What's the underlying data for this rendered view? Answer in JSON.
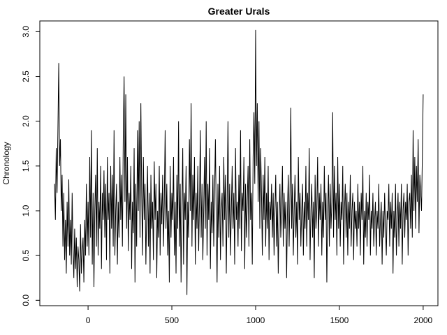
{
  "chart_data": {
    "type": "line",
    "title": "Greater Urals",
    "y_label": "Chronology",
    "x": [
      -200,
      -195,
      -190,
      -185,
      -180,
      -175,
      -170,
      -165,
      -160,
      -155,
      -150,
      -145,
      -140,
      -135,
      -130,
      -125,
      -120,
      -115,
      -110,
      -105,
      -100,
      -95,
      -90,
      -85,
      -80,
      -75,
      -70,
      -65,
      -60,
      -55,
      -50,
      -45,
      -40,
      -35,
      -30,
      -25,
      -20,
      -15,
      -10,
      -5,
      0,
      5,
      10,
      15,
      20,
      25,
      30,
      35,
      40,
      45,
      50,
      55,
      60,
      65,
      70,
      75,
      80,
      85,
      90,
      95,
      100,
      105,
      110,
      115,
      120,
      125,
      130,
      135,
      140,
      145,
      150,
      155,
      160,
      165,
      170,
      175,
      180,
      185,
      190,
      195,
      200,
      205,
      210,
      215,
      220,
      225,
      230,
      235,
      240,
      245,
      250,
      255,
      260,
      265,
      270,
      275,
      280,
      285,
      290,
      295,
      300,
      305,
      310,
      315,
      320,
      325,
      330,
      335,
      340,
      345,
      350,
      355,
      360,
      365,
      370,
      375,
      380,
      385,
      390,
      395,
      400,
      405,
      410,
      415,
      420,
      425,
      430,
      435,
      440,
      445,
      450,
      455,
      460,
      465,
      470,
      475,
      480,
      485,
      490,
      495,
      500,
      505,
      510,
      515,
      520,
      525,
      530,
      535,
      540,
      545,
      550,
      555,
      560,
      565,
      570,
      575,
      580,
      585,
      590,
      595,
      600,
      605,
      610,
      615,
      620,
      625,
      630,
      635,
      640,
      645,
      650,
      655,
      660,
      665,
      670,
      675,
      680,
      685,
      690,
      695,
      700,
      705,
      710,
      715,
      720,
      725,
      730,
      735,
      740,
      745,
      750,
      755,
      760,
      765,
      770,
      775,
      780,
      785,
      790,
      795,
      800,
      805,
      810,
      815,
      820,
      825,
      830,
      835,
      840,
      845,
      850,
      855,
      860,
      865,
      870,
      875,
      880,
      885,
      890,
      895,
      900,
      905,
      910,
      915,
      920,
      925,
      930,
      935,
      940,
      945,
      950,
      955,
      960,
      965,
      970,
      975,
      980,
      985,
      990,
      995,
      1000,
      1005,
      1010,
      1015,
      1020,
      1025,
      1030,
      1035,
      1040,
      1045,
      1050,
      1055,
      1060,
      1065,
      1070,
      1075,
      1080,
      1085,
      1090,
      1095,
      1100,
      1105,
      1110,
      1115,
      1120,
      1125,
      1130,
      1135,
      1140,
      1145,
      1150,
      1155,
      1160,
      1165,
      1170,
      1175,
      1180,
      1185,
      1190,
      1195,
      1200,
      1205,
      1210,
      1215,
      1220,
      1225,
      1230,
      1235,
      1240,
      1245,
      1250,
      1255,
      1260,
      1265,
      1270,
      1275,
      1280,
      1285,
      1290,
      1295,
      1300,
      1305,
      1310,
      1315,
      1320,
      1325,
      1330,
      1335,
      1340,
      1345,
      1350,
      1355,
      1360,
      1365,
      1370,
      1375,
      1380,
      1385,
      1390,
      1395,
      1400,
      1405,
      1410,
      1415,
      1420,
      1425,
      1430,
      1435,
      1440,
      1445,
      1450,
      1455,
      1460,
      1465,
      1470,
      1475,
      1480,
      1485,
      1490,
      1495,
      1500,
      1505,
      1510,
      1515,
      1520,
      1525,
      1530,
      1535,
      1540,
      1545,
      1550,
      1555,
      1560,
      1565,
      1570,
      1575,
      1580,
      1585,
      1590,
      1595,
      1600,
      1605,
      1610,
      1615,
      1620,
      1625,
      1630,
      1635,
      1640,
      1645,
      1650,
      1655,
      1660,
      1665,
      1670,
      1675,
      1680,
      1685,
      1690,
      1695,
      1700,
      1705,
      1710,
      1715,
      1720,
      1725,
      1730,
      1735,
      1740,
      1745,
      1750,
      1755,
      1760,
      1765,
      1770,
      1775,
      1780,
      1785,
      1790,
      1795,
      1800,
      1805,
      1810,
      1815,
      1820,
      1825,
      1830,
      1835,
      1840,
      1845,
      1850,
      1855,
      1860,
      1865,
      1870,
      1875,
      1880,
      1885,
      1890,
      1895,
      1900,
      1905,
      1910,
      1915,
      1920,
      1925,
      1930,
      1935,
      1940,
      1945,
      1950,
      1955,
      1960,
      1965,
      1970,
      1975,
      1980,
      1985,
      1990,
      1995,
      2000
    ],
    "series": [
      {
        "color": "#000000",
        "values": [
          1.3,
          0.9,
          1.7,
          1.2,
          1.9,
          2.65,
          1.5,
          1.8,
          1.0,
          1.4,
          0.6,
          1.2,
          0.45,
          0.9,
          0.3,
          1.1,
          0.6,
          1.35,
          0.5,
          0.9,
          0.4,
          1.2,
          0.6,
          0.25,
          0.8,
          0.35,
          0.7,
          0.15,
          0.6,
          0.45,
          0.1,
          0.85,
          0.3,
          0.55,
          0.7,
          0.2,
          0.9,
          0.5,
          1.3,
          0.6,
          1.1,
          0.5,
          1.6,
          0.7,
          1.9,
          0.4,
          1.2,
          0.15,
          1.0,
          1.4,
          0.6,
          1.7,
          0.5,
          1.1,
          0.8,
          1.5,
          0.35,
          1.2,
          0.9,
          1.45,
          0.7,
          1.3,
          0.45,
          1.6,
          0.9,
          1.2,
          0.3,
          1.5,
          0.8,
          1.4,
          0.6,
          1.9,
          0.5,
          1.0,
          1.3,
          0.4,
          1.1,
          0.7,
          1.6,
          0.9,
          1.4,
          0.6,
          1.8,
          2.5,
          1.1,
          2.3,
          0.8,
          1.6,
          0.55,
          1.2,
          0.9,
          1.5,
          0.35,
          1.1,
          0.75,
          1.7,
          0.2,
          1.3,
          0.6,
          1.9,
          1.0,
          2.0,
          0.7,
          2.2,
          1.2,
          0.5,
          1.6,
          0.9,
          1.3,
          0.4,
          1.0,
          1.5,
          0.6,
          1.2,
          0.3,
          1.4,
          0.8,
          1.1,
          0.45,
          1.55,
          0.9,
          1.3,
          0.25,
          1.0,
          0.7,
          1.5,
          0.5,
          1.2,
          0.85,
          1.4,
          0.6,
          1.1,
          1.9,
          0.8,
          1.3,
          0.5,
          1.0,
          0.2,
          1.5,
          0.7,
          1.2,
          0.9,
          1.6,
          0.5,
          1.1,
          0.3,
          1.4,
          0.8,
          2.0,
          0.6,
          1.3,
          0.2,
          1.0,
          1.7,
          0.4,
          1.2,
          0.9,
          1.5,
          0.06,
          1.1,
          0.7,
          1.8,
          1.0,
          2.2,
          0.6,
          1.4,
          0.9,
          1.6,
          0.4,
          1.2,
          0.8,
          1.5,
          0.55,
          1.1,
          1.9,
          0.7,
          1.3,
          0.45,
          1.0,
          1.6,
          0.8,
          2.0,
          0.5,
          1.3,
          0.9,
          1.7,
          0.35,
          1.1,
          0.75,
          1.4,
          0.6,
          1.2,
          1.8,
          0.9,
          0.2,
          1.3,
          0.7,
          1.5,
          0.45,
          1.0,
          1.2,
          0.6,
          1.6,
          0.9,
          1.4,
          0.3,
          1.1,
          2.0,
          0.7,
          1.3,
          0.5,
          1.0,
          1.5,
          0.8,
          1.2,
          0.4,
          1.7,
          0.9,
          1.1,
          0.6,
          1.4,
          0.8,
          1.9,
          0.55,
          1.2,
          1.0,
          1.6,
          0.35,
          1.3,
          0.7,
          1.1,
          1.5,
          0.6,
          1.8,
          0.9,
          1.2,
          0.4,
          1.6,
          2.1,
          1.3,
          3.02,
          1.5,
          2.2,
          1.1,
          2.0,
          0.8,
          1.7,
          1.2,
          0.5,
          1.4,
          0.9,
          1.6,
          0.6,
          1.2,
          0.8,
          1.5,
          0.45,
          1.1,
          0.9,
          1.3,
          0.7,
          1.2,
          0.5,
          1.0,
          1.4,
          0.6,
          1.1,
          0.3,
          0.9,
          1.3,
          0.7,
          1.0,
          1.5,
          0.6,
          1.2,
          0.8,
          1.1,
          0.25,
          1.0,
          1.4,
          0.6,
          1.2,
          2.15,
          0.8,
          1.3,
          0.5,
          1.0,
          1.4,
          0.7,
          1.1,
          0.4,
          1.6,
          0.9,
          1.2,
          0.6,
          1.0,
          1.3,
          0.5,
          1.1,
          0.8,
          1.5,
          0.6,
          1.2,
          0.9,
          1.7,
          0.45,
          1.0,
          1.3,
          0.7,
          1.1,
          0.25,
          1.4,
          0.8,
          1.0,
          1.6,
          0.6,
          1.2,
          0.9,
          1.3,
          0.5,
          1.1,
          0.7,
          1.5,
          0.9,
          1.2,
          0.2,
          1.0,
          1.4,
          0.6,
          1.3,
          0.8,
          1.1,
          2.1,
          0.7,
          1.5,
          0.9,
          1.2,
          0.5,
          1.6,
          0.8,
          1.3,
          0.6,
          1.1,
          0.9,
          1.5,
          0.4,
          1.0,
          1.3,
          0.7,
          1.2,
          0.5,
          1.1,
          0.8,
          1.4,
          0.6,
          1.0,
          1.2,
          0.45,
          1.1,
          0.8,
          1.0,
          0.6,
          1.3,
          0.8,
          1.1,
          0.5,
          1.2,
          0.9,
          1.5,
          0.4,
          1.0,
          0.7,
          1.2,
          0.6,
          1.1,
          0.9,
          1.4,
          0.5,
          1.0,
          0.8,
          1.2,
          0.6,
          0.9,
          1.1,
          0.5,
          1.0,
          0.8,
          1.3,
          0.6,
          0.9,
          1.1,
          0.4,
          1.0,
          0.7,
          1.2,
          0.8,
          0.5,
          1.0,
          0.9,
          1.3,
          0.6,
          1.1,
          0.8,
          1.2,
          0.3,
          1.0,
          0.7,
          1.3,
          0.5,
          0.9,
          1.2,
          0.6,
          1.1,
          0.8,
          1.3,
          0.4,
          1.0,
          1.2,
          0.7,
          1.1,
          0.9,
          1.3,
          0.5,
          1.1,
          1.2,
          0.8,
          1.4,
          0.7,
          1.9,
          1.0,
          1.6,
          0.8,
          1.5,
          1.1,
          1.8,
          0.75,
          1.4,
          1.2,
          1.0,
          1.6,
          2.3
        ]
      }
    ],
    "xlim": [
      -288,
      2088
    ],
    "xticks": [
      0,
      500,
      1000,
      1500,
      2000
    ],
    "ylim": [
      -0.06,
      3.12
    ],
    "yticks": [
      {
        "value": 0,
        "label": "0.0"
      },
      0.5,
      {
        "value": 1,
        "label": "1.0"
      },
      1.5,
      {
        "value": 2,
        "label": "2.0"
      },
      2.5,
      {
        "value": 3,
        "label": "3.0"
      }
    ]
  }
}
